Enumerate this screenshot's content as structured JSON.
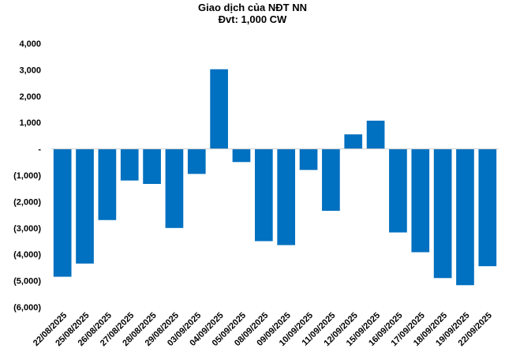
{
  "chart_data": {
    "type": "bar",
    "title": "Giao dịch của NĐT NN",
    "subtitle": "Đvt: 1,000 CW",
    "xlabel": "",
    "ylabel": "",
    "ylim": [
      -6000,
      4000
    ],
    "yticks": [
      4000,
      3000,
      2000,
      1000,
      0,
      -1000,
      -2000,
      -3000,
      -4000,
      -5000,
      -6000
    ],
    "ytick_labels": [
      "4,000",
      "3,000",
      "2,000",
      "1,000",
      "-",
      "(1,000)",
      "(2,000)",
      "(3,000)",
      "(4,000)",
      "(5,000)",
      "(6,000)"
    ],
    "grid": false,
    "legend": "none",
    "bar_color": "#0070C0",
    "categories": [
      "22/08/2025",
      "25/08/2025",
      "26/08/2025",
      "27/08/2025",
      "28/08/2025",
      "29/08/2025",
      "03/09/2025",
      "04/09/2025",
      "05/09/2025",
      "08/09/2025",
      "09/09/2025",
      "10/09/2025",
      "11/09/2025",
      "12/09/2025",
      "15/09/2025",
      "16/09/2025",
      "17/09/2025",
      "18/09/2025",
      "19/09/2025",
      "22/09/2025"
    ],
    "values": [
      -4850,
      -4350,
      -2700,
      -1200,
      -1330,
      -3000,
      -950,
      3020,
      -500,
      -3500,
      -3650,
      -800,
      -2350,
      550,
      1070,
      -3170,
      -3920,
      -4900,
      -5170,
      -4450
    ]
  }
}
